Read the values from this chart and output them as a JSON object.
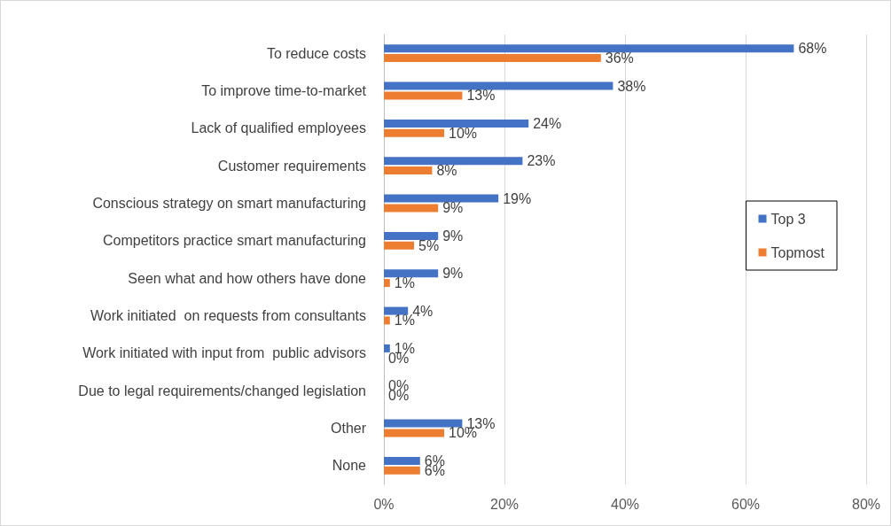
{
  "chart_data": {
    "type": "bar",
    "orientation": "horizontal",
    "categories": [
      "To reduce costs",
      "To improve time-to-market",
      "Lack of qualified employees",
      "Customer requirements",
      "Conscious strategy on smart manufacturing",
      "Competitors practice smart manufacturing",
      "Seen what and how others have done",
      "Work initiated  on requests from consultants",
      "Work initiated with input from  public advisors",
      "Due to legal requirements/changed legislation",
      "Other",
      "None"
    ],
    "series": [
      {
        "name": "Top 3",
        "color": "#4472c4",
        "values": [
          68,
          38,
          24,
          23,
          19,
          9,
          9,
          4,
          1,
          0,
          13,
          6
        ],
        "value_labels": [
          "68%",
          "38%",
          "24%",
          "23%",
          "19%",
          "9%",
          "9%",
          "4%",
          "1%",
          "0%",
          "13%",
          "6%"
        ]
      },
      {
        "name": "Topmost",
        "color": "#ed7d31",
        "values": [
          36,
          13,
          10,
          8,
          9,
          5,
          1,
          1,
          0,
          0,
          10,
          6
        ],
        "value_labels": [
          "36%",
          "13%",
          "10%",
          "8%",
          "9%",
          "5%",
          "1%",
          "1%",
          "0%",
          "0%",
          "10%",
          "6%"
        ]
      }
    ],
    "xlim": [
      0,
      80
    ],
    "xticks": [
      {
        "value": 0,
        "label": "0%"
      },
      {
        "value": 20,
        "label": "20%"
      },
      {
        "value": 40,
        "label": "40%"
      },
      {
        "value": 60,
        "label": "60%"
      },
      {
        "value": 80,
        "label": "80%"
      }
    ],
    "grid": "x",
    "legend": "right"
  }
}
